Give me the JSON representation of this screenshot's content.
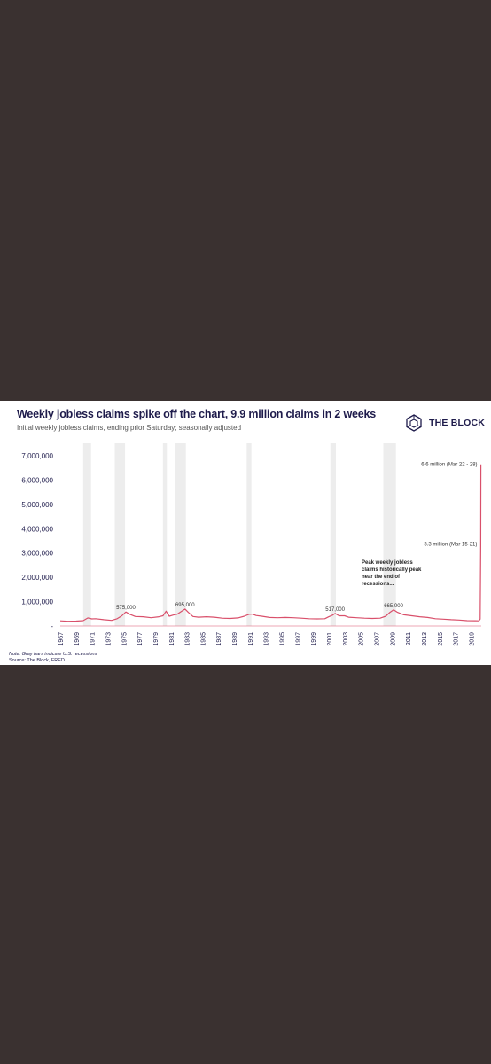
{
  "chart_data": {
    "type": "line",
    "title": "Weekly jobless claims spike off the chart, 9.9 million claims in 2 weeks",
    "subtitle": "Initial weekly jobless claims, ending prior Saturday; seasonally adjusted",
    "y_ticks": [
      "7,000,000",
      "6,000,000",
      "5,000,000",
      "4,000,000",
      "3,000,000",
      "2,000,000",
      "1,000,000",
      "-"
    ],
    "ylim": [
      0,
      7000000
    ],
    "x_ticks": [
      "1967",
      "1969",
      "1971",
      "1973",
      "1975",
      "1977",
      "1979",
      "1981",
      "1983",
      "1985",
      "1987",
      "1989",
      "1991",
      "1993",
      "1995",
      "1997",
      "1999",
      "2001",
      "2003",
      "2005",
      "2007",
      "2009",
      "2011",
      "2013",
      "2015",
      "2017",
      "2019"
    ],
    "xlim": [
      1967,
      2020.3
    ],
    "grid": false,
    "series": [
      {
        "color": "#d9506b",
        "x": [
          1967.0,
          1968.0,
          1969.0,
          1969.9,
          1970.5,
          1971.0,
          1971.5,
          1972.5,
          1973.5,
          1974.2,
          1974.8,
          1975.3,
          1975.8,
          1976.5,
          1977.5,
          1978.5,
          1979.5,
          1980.0,
          1980.4,
          1980.8,
          1981.3,
          1981.8,
          1982.3,
          1982.8,
          1983.2,
          1983.8,
          1984.5,
          1985.5,
          1986.5,
          1987.5,
          1988.5,
          1989.5,
          1990.3,
          1990.9,
          1991.3,
          1991.8,
          1992.5,
          1993.5,
          1994.5,
          1995.5,
          1996.5,
          1997.5,
          1998.5,
          1999.5,
          2000.5,
          2001.0,
          2001.5,
          2001.8,
          2002.3,
          2003.0,
          2003.5,
          2004.5,
          2005.5,
          2006.5,
          2007.5,
          2008.2,
          2008.7,
          2009.2,
          2009.7,
          2010.5,
          2011.5,
          2012.5,
          2013.5,
          2014.5,
          2015.5,
          2016.5,
          2017.5,
          2018.5,
          2019.5,
          2020.0,
          2020.17,
          2020.23,
          2020.25
        ],
        "y": [
          210000,
          195000,
          200000,
          220000,
          330000,
          290000,
          300000,
          260000,
          230000,
          300000,
          420000,
          575000,
          480000,
          390000,
          380000,
          340000,
          380000,
          420000,
          610000,
          400000,
          450000,
          480000,
          595000,
          695000,
          560000,
          390000,
          360000,
          380000,
          360000,
          320000,
          310000,
          330000,
          400000,
          480000,
          490000,
          430000,
          400000,
          350000,
          340000,
          350000,
          340000,
          320000,
          300000,
          290000,
          300000,
          380000,
          450000,
          517000,
          420000,
          420000,
          360000,
          340000,
          320000,
          310000,
          320000,
          400000,
          550000,
          665000,
          560000,
          460000,
          420000,
          380000,
          350000,
          300000,
          280000,
          260000,
          245000,
          220000,
          215000,
          210000,
          282000,
          3307000,
          6648000
        ]
      }
    ],
    "recessions": [
      [
        1969.9,
        1970.9
      ],
      [
        1973.9,
        1975.2
      ],
      [
        1980.0,
        1980.5
      ],
      [
        1981.5,
        1982.9
      ],
      [
        1990.6,
        1991.2
      ],
      [
        2001.2,
        2001.9
      ],
      [
        2007.9,
        2009.5
      ]
    ],
    "annotations": [
      {
        "text": "575,000",
        "x": 1975.3,
        "y": 575000
      },
      {
        "text": "695,000",
        "x": 1982.8,
        "y": 695000
      },
      {
        "text": "517,000",
        "x": 2001.8,
        "y": 517000
      },
      {
        "text": "665,000",
        "x": 2009.2,
        "y": 665000
      },
      {
        "text": "6.6 million (Mar 22 - 28)",
        "x": 2020.25,
        "y": 6648000
      },
      {
        "text": "3.3 million (Mar 15-21)",
        "x": 2020.23,
        "y": 3307000
      }
    ],
    "callout": [
      "Peak weekly jobless",
      "claims historically peak",
      "near the end of",
      "recessions..."
    ]
  },
  "brand": {
    "name": "THE BLOCK",
    "icon": "cube-icon",
    "color": "#1e1b4b"
  },
  "note": "Note: Gray bars indicate U.S. recessions",
  "source": "Source: The Block, FRED"
}
